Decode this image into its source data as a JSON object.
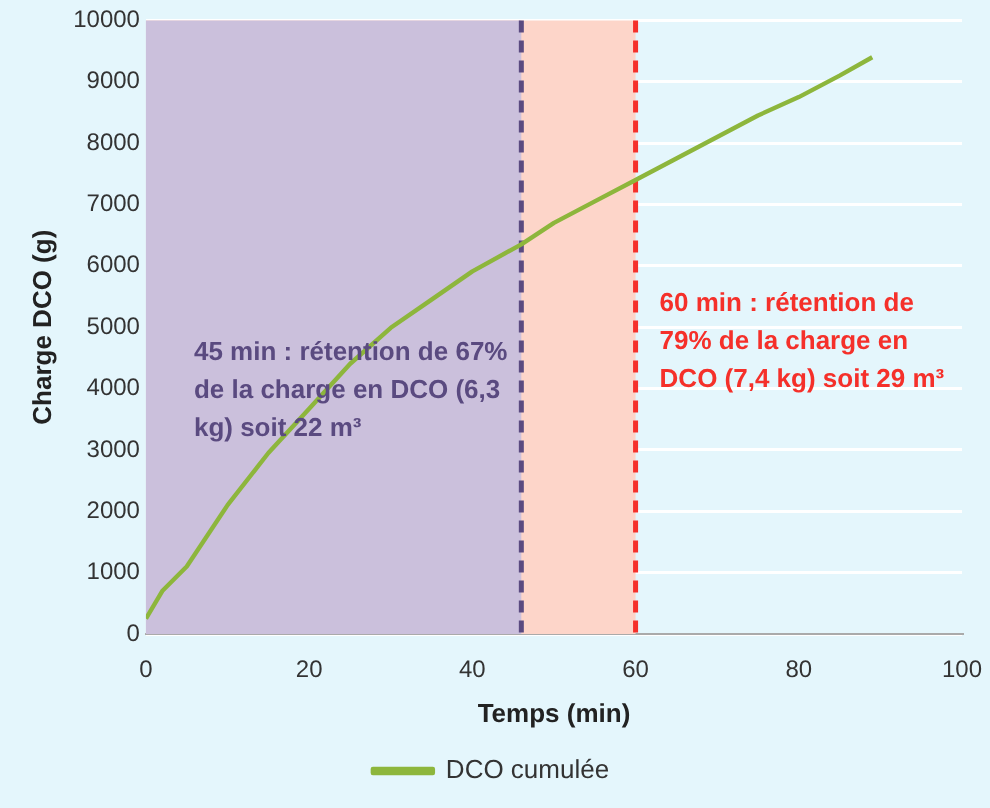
{
  "chart_data": {
    "type": "line",
    "xlabel": "Temps (min)",
    "ylabel": "Charge DCO (g)",
    "xlim": [
      0,
      100
    ],
    "xticks": [
      0,
      20,
      40,
      60,
      80,
      100
    ],
    "ylim": [
      0,
      10000
    ],
    "yticks": [
      0,
      1000,
      2000,
      3000,
      4000,
      5000,
      6000,
      7000,
      8000,
      9000,
      10000
    ],
    "grid": "y",
    "legend": "bottom",
    "marker": "none",
    "line_style": "solid",
    "series": [
      {
        "name": "DCO cumulée",
        "color": "#8db63c",
        "x": [
          0,
          2,
          5,
          10,
          15,
          20,
          25,
          30,
          35,
          40,
          46,
          50,
          55,
          60,
          65,
          70,
          75,
          80,
          85,
          89
        ],
        "values": [
          250,
          700,
          1100,
          2100,
          2950,
          3670,
          4400,
          4990,
          5450,
          5910,
          6350,
          6700,
          7050,
          7400,
          7750,
          8100,
          8450,
          8750,
          9100,
          9400
        ]
      }
    ],
    "bands": [
      {
        "axis": "x",
        "from": 0,
        "to": 60,
        "color": "#fdd5c9"
      },
      {
        "axis": "x",
        "from": 0,
        "to": 46,
        "color": "#cbc0dc"
      }
    ],
    "ref_lines": [
      {
        "axis": "x",
        "value": 46,
        "color": "#5a4a80",
        "line_style": "dashed"
      },
      {
        "axis": "x",
        "value": 60,
        "color": "#f5302a",
        "line_style": "dashed"
      }
    ],
    "annotations": [
      "45 min : rétention de 67% de la charge en DCO (6,3 kg) soit 22 m³",
      "60 min : rétention de 79% de la charge en DCO (7,4 kg) soit 29 m³"
    ]
  }
}
